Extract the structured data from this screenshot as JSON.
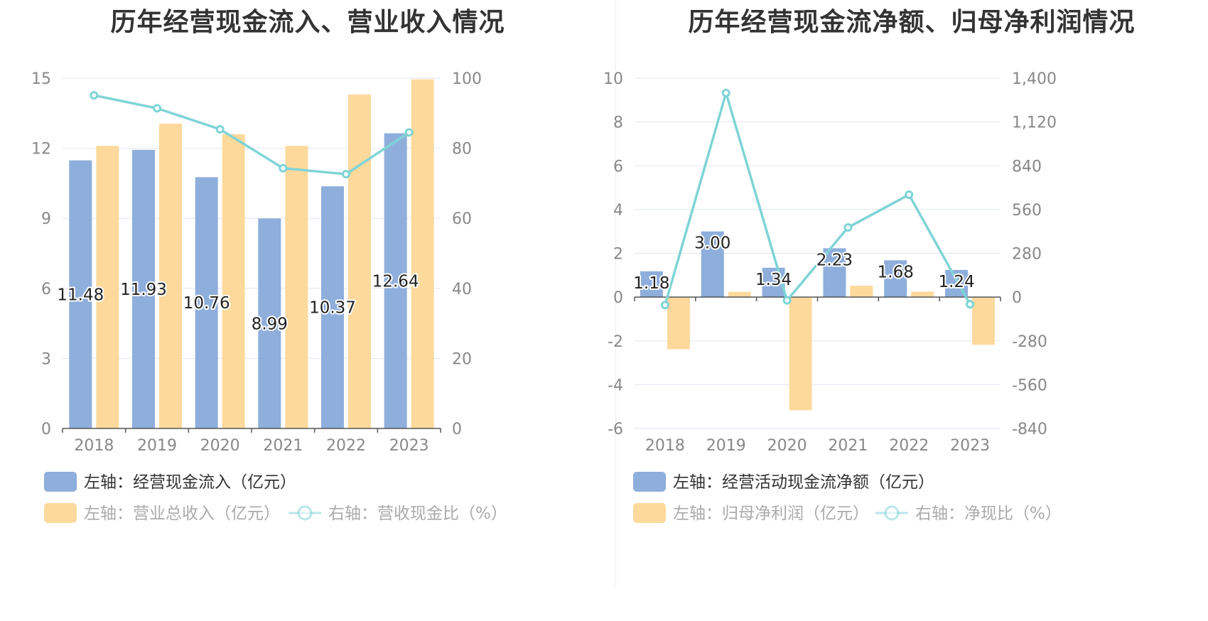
{
  "charts": [
    {
      "title": "历年经营现金流入、营业收入情况"
    },
    {
      "title": "历年经营现金流净额、归母净利润情况"
    }
  ],
  "colors": {
    "blue": "#8eaedc",
    "orange": "#fdd99c",
    "line": "#7fd4d6",
    "grid": "#e1e6f0",
    "axis_text": "#888888",
    "label_text": "#222222"
  },
  "chart_data": [
    {
      "type": "bar",
      "title": "历年经营现金流入、营业收入情况",
      "categories": [
        "2018",
        "2019",
        "2020",
        "2021",
        "2022",
        "2023"
      ],
      "y_left": {
        "min": 0,
        "max": 15,
        "ticks": [
          "0",
          "3",
          "6",
          "9",
          "12",
          "15"
        ]
      },
      "y_right": {
        "min": 0,
        "max": 100,
        "ticks": [
          "0",
          "20",
          "40",
          "60",
          "80",
          "100"
        ]
      },
      "grid": true,
      "legend_position": "bottom-left",
      "series": [
        {
          "name": "左轴：经营现金流入（亿元）",
          "kind": "bar",
          "axis": "left",
          "color": "#8eaedc",
          "values": [
            11.48,
            11.93,
            10.76,
            8.99,
            10.37,
            12.64
          ],
          "labels": [
            "11.48",
            "11.93",
            "10.76",
            "8.99",
            "10.37",
            "12.64"
          ]
        },
        {
          "name": "左轴：营业总收入（亿元）",
          "kind": "bar",
          "axis": "left",
          "color": "#fdd99c",
          "values": [
            12.1,
            13.05,
            12.6,
            12.1,
            14.3,
            14.95
          ]
        },
        {
          "name": "右轴：营收现金比（%）",
          "kind": "line",
          "axis": "right",
          "color": "#7fd4d6",
          "values": [
            95.1,
            91.4,
            85.4,
            74.3,
            72.6,
            84.5
          ]
        }
      ]
    },
    {
      "type": "bar",
      "title": "历年经营现金流净额、归母净利润情况",
      "categories": [
        "2018",
        "2019",
        "2020",
        "2021",
        "2022",
        "2023"
      ],
      "y_left": {
        "min": -6,
        "max": 10,
        "ticks": [
          "-6",
          "-4",
          "-2",
          "0",
          "2",
          "4",
          "6",
          "8",
          "10"
        ]
      },
      "y_right": {
        "min": -840,
        "max": 1400,
        "ticks": [
          "-840",
          "-560",
          "-280",
          "0",
          "280",
          "560",
          "840",
          "1,120",
          "1,400"
        ]
      },
      "grid": true,
      "legend_position": "bottom-left",
      "series": [
        {
          "name": "左轴：经营活动现金流净额（亿元）",
          "kind": "bar",
          "axis": "left",
          "color": "#8eaedc",
          "values": [
            1.18,
            3.0,
            1.34,
            2.23,
            1.68,
            1.24
          ],
          "labels": [
            "1.18",
            "3.00",
            "1.34",
            "2.23",
            "1.68",
            "1.24"
          ]
        },
        {
          "name": "左轴：归母净利润（亿元）",
          "kind": "bar",
          "axis": "left",
          "color": "#fdd99c",
          "values": [
            -2.38,
            0.24,
            -5.17,
            0.52,
            0.25,
            -2.18
          ]
        },
        {
          "name": "右轴：净现比（%）",
          "kind": "line",
          "axis": "right",
          "color": "#7fd4d6",
          "values": [
            -51,
            1305,
            -21,
            445,
            655,
            -46
          ]
        }
      ]
    }
  ]
}
